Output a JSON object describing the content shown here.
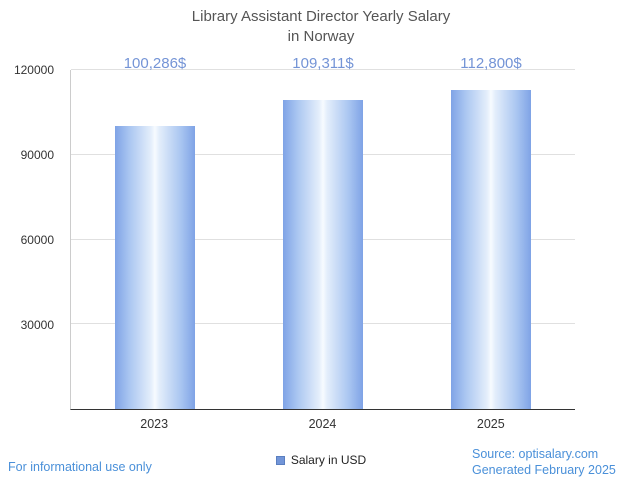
{
  "title": {
    "line1": "Library Assistant Director Yearly Salary",
    "line2": "in Norway"
  },
  "chart_data": {
    "type": "bar",
    "title": "Library Assistant Director Yearly Salary in Norway",
    "categories": [
      "2023",
      "2024",
      "2025"
    ],
    "values": [
      100286,
      109311,
      112800
    ],
    "value_labels": [
      "100,286$",
      "109,311$",
      "112,800$"
    ],
    "xlabel": "",
    "ylabel": "",
    "ylim": [
      0,
      120000
    ],
    "yticks": [
      30000,
      60000,
      90000,
      120000
    ],
    "grid": true,
    "legend_position": "bottom",
    "legend": [
      {
        "label": "Salary in USD",
        "color": "#7295d8"
      }
    ],
    "bar_edge_color": "#7fa3e6",
    "bar_center_color": "#f7fbff",
    "value_label_color": "#7494d6"
  },
  "legend": {
    "label": "Salary in USD"
  },
  "footer": {
    "disclaimer": "For informational use only",
    "source": "Source: optisalary.com",
    "generated": "Generated February 2025"
  },
  "colors": {
    "accent_blue": "#4a90d9",
    "title_gray": "#555555",
    "axis_text": "#333333",
    "gridline": "#e0e0e0"
  }
}
